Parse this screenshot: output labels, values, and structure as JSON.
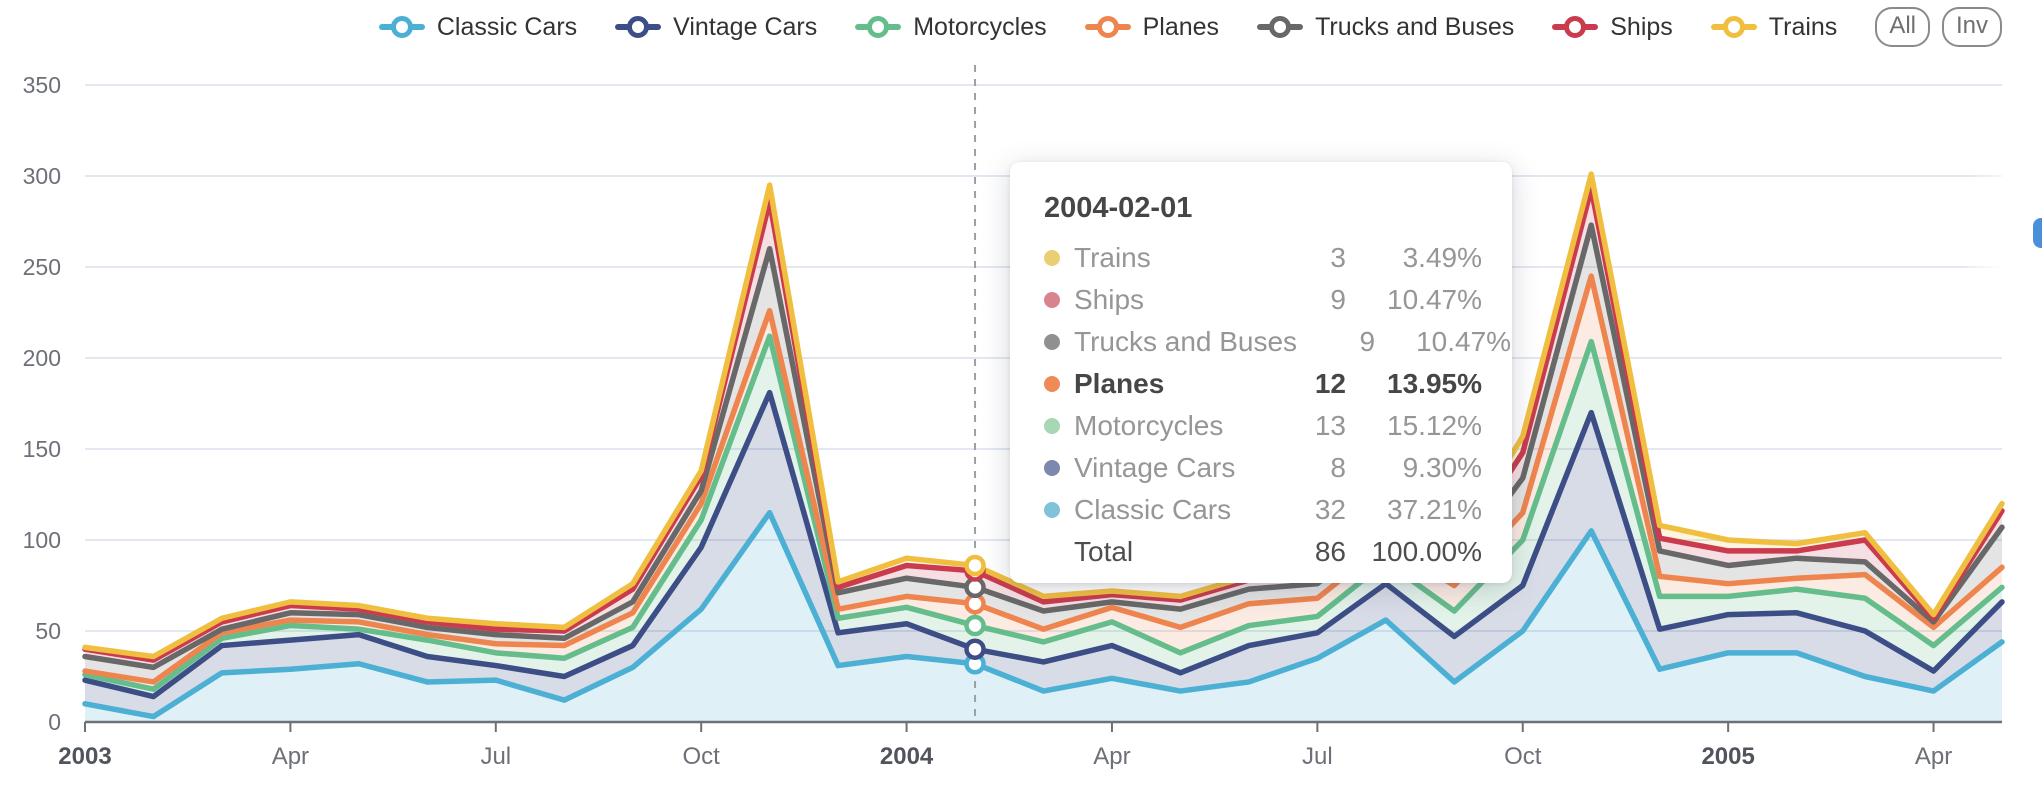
{
  "legend": {
    "items": [
      {
        "label": "Classic Cars",
        "color": "#4cb0d4"
      },
      {
        "label": "Vintage Cars",
        "color": "#3d4e87"
      },
      {
        "label": "Motorcycles",
        "color": "#65bd8b"
      },
      {
        "label": "Planes",
        "color": "#ef854e"
      },
      {
        "label": "Trucks and Buses",
        "color": "#686868"
      },
      {
        "label": "Ships",
        "color": "#ca3b4e"
      },
      {
        "label": "Trains",
        "color": "#f1bf40"
      }
    ],
    "buttons": {
      "all_label": "All",
      "inverse_label": "Inv"
    }
  },
  "chart_data": {
    "type": "area",
    "stacked": true,
    "grid": true,
    "x": [
      "2003-01",
      "2003-02",
      "2003-03",
      "2003-04",
      "2003-05",
      "2003-06",
      "2003-07",
      "2003-08",
      "2003-09",
      "2003-10",
      "2003-11",
      "2003-12",
      "2004-01",
      "2004-02",
      "2004-03",
      "2004-04",
      "2004-05",
      "2004-06",
      "2004-07",
      "2004-08",
      "2004-09",
      "2004-10",
      "2004-11",
      "2004-12",
      "2005-01",
      "2005-02",
      "2005-03",
      "2005-04",
      "2005-05"
    ],
    "x_ticks": [
      {
        "index": 0,
        "label": "2003",
        "bold": true
      },
      {
        "index": 3,
        "label": "Apr",
        "bold": false
      },
      {
        "index": 6,
        "label": "Jul",
        "bold": false
      },
      {
        "index": 9,
        "label": "Oct",
        "bold": false
      },
      {
        "index": 12,
        "label": "2004",
        "bold": true
      },
      {
        "index": 15,
        "label": "Apr",
        "bold": false
      },
      {
        "index": 18,
        "label": "Jul",
        "bold": false
      },
      {
        "index": 21,
        "label": "Oct",
        "bold": false
      },
      {
        "index": 24,
        "label": "2005",
        "bold": true
      },
      {
        "index": 27,
        "label": "Apr",
        "bold": false
      }
    ],
    "ylim": [
      0,
      350
    ],
    "y_ticks": [
      0,
      50,
      100,
      150,
      200,
      250,
      300,
      350
    ],
    "legend_position": "top",
    "highlight_index": 13,
    "series": [
      {
        "name": "Classic Cars",
        "color": "#4cb0d4",
        "fill_opacity": 0.18,
        "values": [
          10,
          3,
          27,
          29,
          32,
          22,
          23,
          12,
          30,
          62,
          115,
          31,
          36,
          32,
          17,
          24,
          17,
          22,
          35,
          56,
          22,
          50,
          105,
          29,
          38,
          38,
          25,
          17,
          44
        ]
      },
      {
        "name": "Vintage Cars",
        "color": "#3d4e87",
        "fill_opacity": 0.2,
        "values": [
          13,
          11,
          15,
          16,
          16,
          14,
          8,
          13,
          12,
          34,
          66,
          18,
          18,
          8,
          16,
          18,
          10,
          20,
          14,
          20,
          25,
          25,
          65,
          22,
          21,
          22,
          25,
          11,
          22
        ]
      },
      {
        "name": "Motorcycles",
        "color": "#65bd8b",
        "fill_opacity": 0.18,
        "values": [
          3,
          4,
          4,
          8,
          3,
          9,
          7,
          10,
          10,
          15,
          31,
          8,
          9,
          13,
          11,
          13,
          11,
          11,
          9,
          12,
          14,
          25,
          39,
          18,
          10,
          13,
          18,
          14,
          8
        ]
      },
      {
        "name": "Planes",
        "color": "#ef854e",
        "fill_opacity": 0.16,
        "values": [
          2,
          4,
          3,
          3,
          4,
          3,
          5,
          7,
          8,
          9,
          14,
          5,
          6,
          12,
          7,
          8,
          14,
          12,
          10,
          10,
          14,
          15,
          36,
          11,
          7,
          6,
          13,
          10,
          11
        ]
      },
      {
        "name": "Trucks and Buses",
        "color": "#686868",
        "fill_opacity": 0.18,
        "values": [
          8,
          8,
          2,
          4,
          4,
          4,
          5,
          4,
          6,
          7,
          34,
          9,
          10,
          9,
          10,
          3,
          10,
          8,
          8,
          9,
          9,
          19,
          28,
          14,
          10,
          11,
          7,
          3,
          22
        ]
      },
      {
        "name": "Ships",
        "color": "#ca3b4e",
        "fill_opacity": 0.16,
        "values": [
          4,
          4,
          4,
          4,
          3,
          3,
          3,
          4,
          7,
          8,
          26,
          3,
          7,
          9,
          5,
          4,
          5,
          5,
          6,
          8,
          7,
          14,
          20,
          7,
          8,
          4,
          12,
          2,
          9
        ]
      },
      {
        "name": "Trains",
        "color": "#f1bf40",
        "fill_opacity": 0.16,
        "values": [
          1,
          2,
          2,
          2,
          2,
          2,
          3,
          2,
          3,
          3,
          9,
          3,
          4,
          3,
          3,
          2,
          2,
          2,
          3,
          3,
          4,
          9,
          8,
          7,
          6,
          4,
          4,
          2,
          4
        ]
      }
    ]
  },
  "tooltip": {
    "title": "2004-02-01",
    "rows": [
      {
        "name": "Trains",
        "dot_color": "#e9ce74",
        "value": "3",
        "pct": "3.49%",
        "bold": false
      },
      {
        "name": "Ships",
        "dot_color": "#d8848f",
        "value": "9",
        "pct": "10.47%",
        "bold": false
      },
      {
        "name": "Trucks and Buses",
        "dot_color": "#909090",
        "value": "9",
        "pct": "10.47%",
        "bold": false
      },
      {
        "name": "Planes",
        "dot_color": "#ef8a59",
        "value": "12",
        "pct": "13.95%",
        "bold": true
      },
      {
        "name": "Motorcycles",
        "dot_color": "#a6d8b3",
        "value": "13",
        "pct": "15.12%",
        "bold": false
      },
      {
        "name": "Vintage Cars",
        "dot_color": "#7e88af",
        "value": "8",
        "pct": "9.30%",
        "bold": false
      },
      {
        "name": "Classic Cars",
        "dot_color": "#7fc3da",
        "value": "32",
        "pct": "37.21%",
        "bold": false
      }
    ],
    "total": {
      "label": "Total",
      "value": "86",
      "pct": "100.00%"
    }
  },
  "style": {
    "grid_line_color": "#e2e7f2",
    "axis_color": "#6E7079",
    "tick_label_color": "#6E7079",
    "year_label_color": "#50545c",
    "dashed_pointer_color": "#9aa0a6",
    "edge_button_color": "#4a90d9"
  }
}
